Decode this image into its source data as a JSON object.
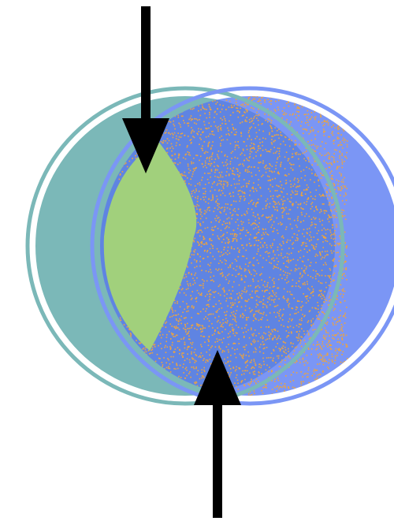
{
  "diagram": {
    "left_disc_color": "#7bb8b8",
    "right_disc_color": "#7b96f5",
    "overlap_fill_color": "#5f84e2",
    "speckle_color": "#f0a43a",
    "lens_color": "#a1d07c",
    "arrow_color": "#000000",
    "background_color": "#ffffff",
    "arrows": [
      {
        "name": "top-arrow",
        "direction": "down"
      },
      {
        "name": "bottom-arrow",
        "direction": "up"
      }
    ]
  }
}
